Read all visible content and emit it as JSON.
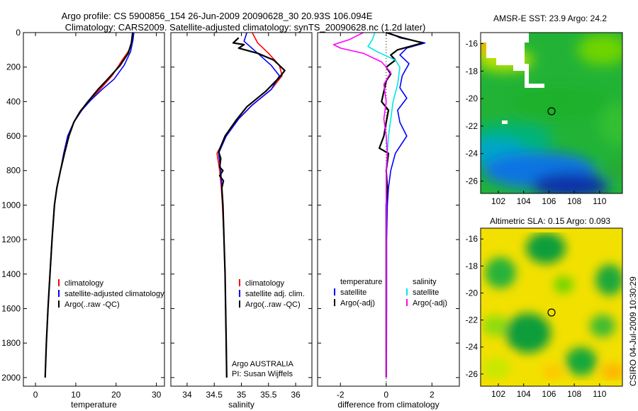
{
  "header": {
    "line1": "Argo profile: CS 5900856_154 26-Jun-2009 20090628_30 20.93S 106.094E",
    "line2": "Climatology: CARS2009. Satellite-adjusted climatology: synTS_20090628.nc (1.2d later)"
  },
  "footer_text": "CSIRO 04-Jul-2009 10:30:29",
  "colors": {
    "climatology": "#ff0000",
    "satellite": "#0000ff",
    "argo": "#000000",
    "sal_satellite": "#00e5e5",
    "sal_argo": "#ff00ff"
  },
  "chart_data": [
    {
      "id": "temperature",
      "type": "line",
      "xlabel": "temperature",
      "ylabel": "",
      "xlim": [
        -3,
        32
      ],
      "ylim": [
        2050,
        0
      ],
      "xticks": [
        0,
        10,
        20,
        30
      ],
      "yticks": [
        0,
        200,
        400,
        600,
        800,
        1000,
        1200,
        1400,
        1600,
        1800,
        2000
      ],
      "legend": {
        "placement": "lower-right",
        "items": [
          "climatology",
          "satellite-adjusted climatology",
          "Argo(..raw -QC)"
        ]
      },
      "series": [
        {
          "name": "climatology",
          "color": "#ff0000",
          "points": [
            [
              24.2,
              0
            ],
            [
              24,
              40
            ],
            [
              23.3,
              100
            ],
            [
              21.5,
              160
            ],
            [
              19,
              250
            ],
            [
              16,
              330
            ],
            [
              13.5,
              390
            ],
            [
              11.5,
              450
            ],
            [
              9.5,
              520
            ],
            [
              8,
              600
            ],
            [
              7,
              700
            ],
            [
              6.2,
              800
            ],
            [
              5.3,
              900
            ],
            [
              4.7,
              1000
            ],
            [
              4.1,
              1200
            ],
            [
              3.6,
              1400
            ],
            [
              3.1,
              1600
            ],
            [
              2.7,
              1800
            ],
            [
              2.4,
              2000
            ]
          ]
        },
        {
          "name": "satellite-adjusted climatology",
          "color": "#0000ff",
          "points": [
            [
              24.4,
              0
            ],
            [
              24.2,
              40
            ],
            [
              23.6,
              110
            ],
            [
              22,
              190
            ],
            [
              19.5,
              270
            ],
            [
              16.5,
              330
            ],
            [
              13.8,
              390
            ],
            [
              11.5,
              450
            ],
            [
              9.5,
              520
            ],
            [
              8,
              600
            ],
            [
              7,
              700
            ],
            [
              6.2,
              800
            ],
            [
              5.3,
              900
            ],
            [
              4.7,
              1000
            ],
            [
              4.1,
              1200
            ],
            [
              3.6,
              1400
            ],
            [
              3.1,
              1600
            ],
            [
              2.7,
              1800
            ],
            [
              2.4,
              2000
            ]
          ]
        },
        {
          "name": "Argo(..raw -QC)",
          "color": "#000000",
          "points": [
            [
              24.1,
              0
            ],
            [
              23.8,
              60
            ],
            [
              23,
              120
            ],
            [
              21,
              190
            ],
            [
              18.3,
              260
            ],
            [
              15.5,
              330
            ],
            [
              13,
              400
            ],
            [
              11,
              460
            ],
            [
              9.5,
              520
            ],
            [
              8.3,
              600
            ],
            [
              7.2,
              700
            ],
            [
              6.2,
              800
            ],
            [
              5.3,
              900
            ],
            [
              4.7,
              1000
            ],
            [
              4.1,
              1200
            ],
            [
              3.6,
              1400
            ],
            [
              3.1,
              1600
            ],
            [
              2.7,
              1800
            ],
            [
              2.4,
              2000
            ]
          ]
        }
      ]
    },
    {
      "id": "salinity",
      "type": "line",
      "xlabel": "salinity",
      "ylabel": "",
      "xlim": [
        33.7,
        36.3
      ],
      "ylim": [
        2050,
        0
      ],
      "xticks": [
        34,
        34.5,
        35,
        35.5,
        36
      ],
      "xtick_labels": [
        "34",
        "34.5",
        "35",
        "35.5",
        "36"
      ],
      "legend": {
        "placement": "lower-right",
        "items": [
          "climatology",
          "satellite adj. clim.",
          "Argo(..raw -QC)"
        ]
      },
      "annotations": [
        "Argo AUSTRALIA",
        "PI: Susan Wijffels"
      ],
      "series": [
        {
          "name": "climatology",
          "color": "#ff0000",
          "points": [
            [
              35.2,
              0
            ],
            [
              35.3,
              60
            ],
            [
              35.5,
              120
            ],
            [
              35.7,
              190
            ],
            [
              35.75,
              250
            ],
            [
              35.55,
              330
            ],
            [
              35.2,
              420
            ],
            [
              34.95,
              500
            ],
            [
              34.72,
              600
            ],
            [
              34.55,
              700
            ],
            [
              34.6,
              800
            ],
            [
              34.63,
              900
            ],
            [
              34.65,
              1000
            ],
            [
              34.68,
              1200
            ],
            [
              34.7,
              1400
            ],
            [
              34.71,
              1600
            ],
            [
              34.72,
              1800
            ],
            [
              34.73,
              2000
            ]
          ]
        },
        {
          "name": "satellite adj. clim.",
          "color": "#0000ff",
          "points": [
            [
              35.1,
              0
            ],
            [
              35.05,
              50
            ],
            [
              35.3,
              120
            ],
            [
              35.55,
              190
            ],
            [
              35.7,
              250
            ],
            [
              35.55,
              330
            ],
            [
              35.2,
              420
            ],
            [
              34.95,
              500
            ],
            [
              34.72,
              600
            ],
            [
              34.58,
              700
            ],
            [
              34.62,
              800
            ],
            [
              34.64,
              900
            ],
            [
              34.66,
              1000
            ],
            [
              34.68,
              1200
            ],
            [
              34.7,
              1400
            ],
            [
              34.71,
              1600
            ],
            [
              34.72,
              1800
            ],
            [
              34.73,
              2000
            ]
          ]
        },
        {
          "name": "Argo(..raw -QC)",
          "color": "#000000",
          "points": [
            [
              34.95,
              30
            ],
            [
              34.85,
              60
            ],
            [
              35.05,
              70
            ],
            [
              34.95,
              90
            ],
            [
              35.3,
              120
            ],
            [
              35.6,
              160
            ],
            [
              35.8,
              220
            ],
            [
              35.7,
              260
            ],
            [
              35.45,
              340
            ],
            [
              35.1,
              430
            ],
            [
              34.9,
              510
            ],
            [
              34.7,
              600
            ],
            [
              34.58,
              690
            ],
            [
              34.62,
              730
            ],
            [
              34.6,
              780
            ],
            [
              34.66,
              800
            ],
            [
              34.6,
              830
            ],
            [
              34.67,
              860
            ],
            [
              34.64,
              900
            ],
            [
              34.66,
              1000
            ],
            [
              34.68,
              1200
            ],
            [
              34.7,
              1400
            ],
            [
              34.71,
              1600
            ],
            [
              34.72,
              1800
            ],
            [
              34.73,
              2000
            ]
          ]
        }
      ]
    },
    {
      "id": "difference",
      "type": "line",
      "xlabel": "difference from climatology",
      "ylabel": "",
      "xlim": [
        -3,
        3.2
      ],
      "ylim": [
        2050,
        0
      ],
      "xticks": [
        -2,
        0,
        2
      ],
      "legend": {
        "placement": "lower-right",
        "temperature_group": {
          "title": "temperature",
          "items": [
            "satellite",
            "Argo(-adj)"
          ]
        },
        "salinity_group": {
          "title": "salinity",
          "items": [
            "satellite",
            "Argo(-adj)"
          ]
        }
      },
      "series": [
        {
          "name": "temperature satellite",
          "color": "#0000ff",
          "points": [
            [
              0.1,
              0
            ],
            [
              0.6,
              30
            ],
            [
              1.7,
              60
            ],
            [
              0.9,
              90
            ],
            [
              0.6,
              130
            ],
            [
              1.0,
              180
            ],
            [
              0.7,
              250
            ],
            [
              0.6,
              320
            ],
            [
              0.9,
              380
            ],
            [
              0.5,
              450
            ],
            [
              0.6,
              520
            ],
            [
              0.9,
              600
            ],
            [
              0.4,
              700
            ],
            [
              0.2,
              800
            ],
            [
              0.1,
              900
            ],
            [
              0.05,
              1000
            ],
            [
              0.02,
              1200
            ],
            [
              0.02,
              1600
            ],
            [
              0.01,
              2000
            ]
          ]
        },
        {
          "name": "temperature Argo(-adj)",
          "color": "#000000",
          "points": [
            [
              0,
              0
            ],
            [
              0.7,
              30
            ],
            [
              1.6,
              60
            ],
            [
              0.5,
              100
            ],
            [
              0.2,
              130
            ],
            [
              0.4,
              160
            ],
            [
              0,
              200
            ],
            [
              0.2,
              240
            ],
            [
              0,
              280
            ],
            [
              -0.2,
              400
            ],
            [
              0.1,
              450
            ],
            [
              0,
              520
            ],
            [
              -0.1,
              600
            ],
            [
              -0.3,
              670
            ],
            [
              0.1,
              700
            ],
            [
              0,
              800
            ],
            [
              0.05,
              900
            ],
            [
              0,
              1000
            ],
            [
              0,
              1200
            ],
            [
              0,
              1600
            ],
            [
              0,
              2000
            ]
          ]
        },
        {
          "name": "salinity satellite",
          "color": "#00e5e5",
          "points": [
            [
              -0.5,
              0
            ],
            [
              -0.6,
              40
            ],
            [
              -0.8,
              80
            ],
            [
              -0.4,
              110
            ],
            [
              0.4,
              160
            ],
            [
              0.6,
              200
            ],
            [
              0.5,
              300
            ],
            [
              0.3,
              400
            ],
            [
              0.1,
              600
            ],
            [
              0,
              800
            ],
            [
              0,
              1200
            ],
            [
              0,
              1600
            ],
            [
              0,
              2000
            ]
          ]
        },
        {
          "name": "salinity Argo(-adj)",
          "color": "#ff00ff",
          "points": [
            [
              -1.0,
              0
            ],
            [
              -1.6,
              40
            ],
            [
              -2.3,
              70
            ],
            [
              -2.0,
              90
            ],
            [
              -1.0,
              120
            ],
            [
              -0.2,
              170
            ],
            [
              0.2,
              230
            ],
            [
              -0.1,
              300
            ],
            [
              0,
              400
            ],
            [
              -0.1,
              500
            ],
            [
              0,
              600
            ],
            [
              0.05,
              700
            ],
            [
              0,
              800
            ],
            [
              0,
              1000
            ],
            [
              0,
              1400
            ],
            [
              0,
              1800
            ],
            [
              0,
              2000
            ]
          ]
        }
      ]
    },
    {
      "id": "sst-map",
      "type": "heatmap",
      "title": "AMSR-E SST: 23.9 Argo: 24.2",
      "xlim": [
        100.6,
        111.8
      ],
      "ylim": [
        -26.9,
        -15.2
      ],
      "xticks": [
        102,
        104,
        106,
        108,
        110
      ],
      "yticks": [
        -16,
        -18,
        -20,
        -22,
        -24,
        -26
      ],
      "marker": {
        "lon": 106.094,
        "lat": -20.93
      }
    },
    {
      "id": "sla-map",
      "type": "heatmap",
      "title": "Altimetric SLA: 0.15 Argo: 0.093",
      "xlim": [
        100.6,
        111.8
      ],
      "ylim": [
        -26.9,
        -15.2
      ],
      "xticks": [
        102,
        104,
        106,
        108,
        110
      ],
      "yticks": [
        -16,
        -18,
        -20,
        -22,
        -24,
        -26
      ],
      "marker": {
        "lon": 106.094,
        "lat": -20.93
      }
    }
  ]
}
